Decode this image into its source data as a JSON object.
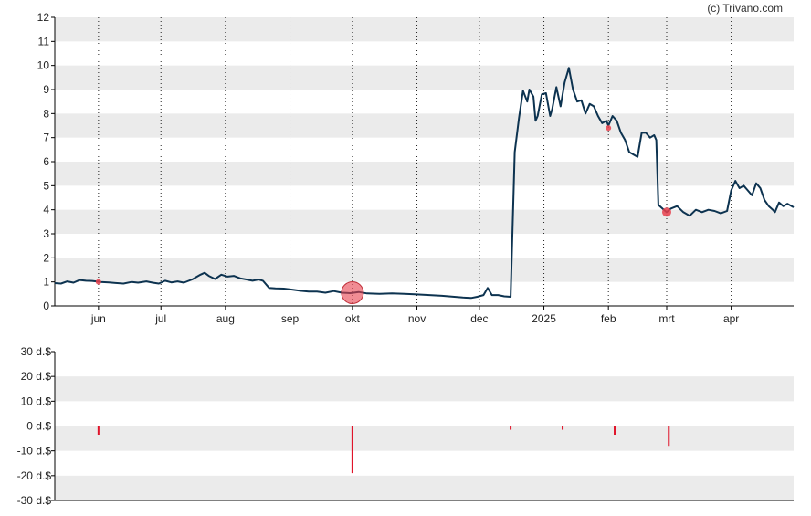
{
  "credit": "(c) Trivano.com",
  "colors": {
    "band": "#ebebeb",
    "price_line": "#0d3350",
    "event_marker": "#e8404c",
    "bar": "#e0142a",
    "axis": "#000000",
    "vgrid": "#222222"
  },
  "chart_data": [
    {
      "type": "line",
      "name": "price",
      "ylim": [
        0,
        12
      ],
      "yticks": [
        "0",
        "1",
        "2",
        "3",
        "4",
        "5",
        "6",
        "7",
        "8",
        "9",
        "10",
        "11",
        "12"
      ],
      "grid": "alternating horizontal bands, dotted vertical lines at month ticks",
      "month_ticks": [
        {
          "label": "jun",
          "day": 21
        },
        {
          "label": "jul",
          "day": 51
        },
        {
          "label": "aug",
          "day": 82
        },
        {
          "label": "sep",
          "day": 113
        },
        {
          "label": "okt",
          "day": 143
        },
        {
          "label": "nov",
          "day": 174
        },
        {
          "label": "dec",
          "day": 204
        },
        {
          "label": "2025",
          "day": 235
        },
        {
          "label": "feb",
          "day": 266
        },
        {
          "label": "mrt",
          "day": 294
        },
        {
          "label": "apr",
          "day": 325
        }
      ],
      "x_range_days": [
        0,
        355
      ],
      "points": [
        [
          0,
          0.95
        ],
        [
          3,
          0.93
        ],
        [
          6,
          1.02
        ],
        [
          9,
          0.97
        ],
        [
          12,
          1.08
        ],
        [
          15,
          1.05
        ],
        [
          18,
          1.04
        ],
        [
          22,
          1.0
        ],
        [
          26,
          0.98
        ],
        [
          30,
          0.95
        ],
        [
          33,
          0.93
        ],
        [
          37,
          1.0
        ],
        [
          40,
          0.97
        ],
        [
          44,
          1.02
        ],
        [
          47,
          0.97
        ],
        [
          50,
          0.93
        ],
        [
          53,
          1.05
        ],
        [
          56,
          0.98
        ],
        [
          59,
          1.02
        ],
        [
          62,
          0.97
        ],
        [
          66,
          1.1
        ],
        [
          70,
          1.3
        ],
        [
          72,
          1.38
        ],
        [
          74,
          1.25
        ],
        [
          77,
          1.12
        ],
        [
          80,
          1.3
        ],
        [
          83,
          1.22
        ],
        [
          86,
          1.25
        ],
        [
          89,
          1.15
        ],
        [
          92,
          1.1
        ],
        [
          95,
          1.05
        ],
        [
          98,
          1.1
        ],
        [
          100,
          1.05
        ],
        [
          103,
          0.75
        ],
        [
          106,
          0.73
        ],
        [
          110,
          0.72
        ],
        [
          114,
          0.68
        ],
        [
          118,
          0.63
        ],
        [
          122,
          0.6
        ],
        [
          126,
          0.6
        ],
        [
          130,
          0.55
        ],
        [
          134,
          0.62
        ],
        [
          138,
          0.55
        ],
        [
          142,
          0.53
        ],
        [
          146,
          0.58
        ],
        [
          150,
          0.52
        ],
        [
          156,
          0.5
        ],
        [
          162,
          0.52
        ],
        [
          168,
          0.5
        ],
        [
          174,
          0.48
        ],
        [
          180,
          0.45
        ],
        [
          186,
          0.42
        ],
        [
          192,
          0.38
        ],
        [
          196,
          0.35
        ],
        [
          200,
          0.33
        ],
        [
          203,
          0.38
        ],
        [
          206,
          0.45
        ],
        [
          208,
          0.75
        ],
        [
          210,
          0.45
        ],
        [
          213,
          0.45
        ],
        [
          216,
          0.4
        ],
        [
          219,
          0.38
        ],
        [
          221,
          6.4
        ],
        [
          223,
          7.8
        ],
        [
          225,
          8.95
        ],
        [
          227,
          8.5
        ],
        [
          228,
          9.0
        ],
        [
          230,
          8.7
        ],
        [
          231,
          7.7
        ],
        [
          232,
          7.9
        ],
        [
          234,
          8.8
        ],
        [
          236,
          8.85
        ],
        [
          238,
          7.9
        ],
        [
          239,
          8.2
        ],
        [
          241,
          9.1
        ],
        [
          243,
          8.3
        ],
        [
          245,
          9.3
        ],
        [
          247,
          9.9
        ],
        [
          249,
          9.0
        ],
        [
          251,
          8.5
        ],
        [
          253,
          8.55
        ],
        [
          255,
          8.0
        ],
        [
          257,
          8.4
        ],
        [
          259,
          8.3
        ],
        [
          261,
          7.9
        ],
        [
          263,
          7.6
        ],
        [
          265,
          7.7
        ],
        [
          266,
          7.5
        ],
        [
          268,
          7.9
        ],
        [
          270,
          7.7
        ],
        [
          272,
          7.2
        ],
        [
          274,
          6.9
        ],
        [
          276,
          6.4
        ],
        [
          278,
          6.3
        ],
        [
          280,
          6.2
        ],
        [
          282,
          7.2
        ],
        [
          284,
          7.2
        ],
        [
          286,
          7.0
        ],
        [
          288,
          7.1
        ],
        [
          289,
          6.9
        ],
        [
          290,
          4.2
        ],
        [
          292,
          4.05
        ],
        [
          294,
          3.9
        ],
        [
          296,
          4.05
        ],
        [
          299,
          4.15
        ],
        [
          302,
          3.9
        ],
        [
          305,
          3.75
        ],
        [
          308,
          4.0
        ],
        [
          311,
          3.9
        ],
        [
          314,
          4.0
        ],
        [
          317,
          3.95
        ],
        [
          320,
          3.85
        ],
        [
          323,
          3.95
        ],
        [
          325,
          4.8
        ],
        [
          327,
          5.2
        ],
        [
          329,
          4.9
        ],
        [
          331,
          5.0
        ],
        [
          333,
          4.8
        ],
        [
          335,
          4.6
        ],
        [
          337,
          5.1
        ],
        [
          339,
          4.9
        ],
        [
          341,
          4.4
        ],
        [
          343,
          4.15
        ],
        [
          345,
          4.0
        ],
        [
          346,
          3.9
        ],
        [
          348,
          4.3
        ],
        [
          350,
          4.15
        ],
        [
          352,
          4.25
        ],
        [
          355,
          4.1
        ]
      ],
      "event_markers": [
        {
          "day": 21,
          "value": 1.0,
          "size": "small"
        },
        {
          "day": 143,
          "value": 0.55,
          "size": "large"
        },
        {
          "day": 266,
          "value": 7.4,
          "size": "small"
        },
        {
          "day": 294,
          "value": 3.9,
          "size": "medium"
        }
      ]
    },
    {
      "type": "bar",
      "name": "insider transactions",
      "ylim": [
        -30,
        30
      ],
      "yticks": [
        "30 d.$",
        "20 d.$",
        "10 d.$",
        "0 d.$",
        "-10 d.$",
        "-20 d.$",
        "-30 d.$"
      ],
      "bars": [
        {
          "day": 21,
          "value": -3.5
        },
        {
          "day": 143,
          "value": -19
        },
        {
          "day": 219,
          "value": -1.5
        },
        {
          "day": 244,
          "value": -1.5
        },
        {
          "day": 269,
          "value": -3.5
        },
        {
          "day": 295,
          "value": -8
        }
      ]
    }
  ]
}
